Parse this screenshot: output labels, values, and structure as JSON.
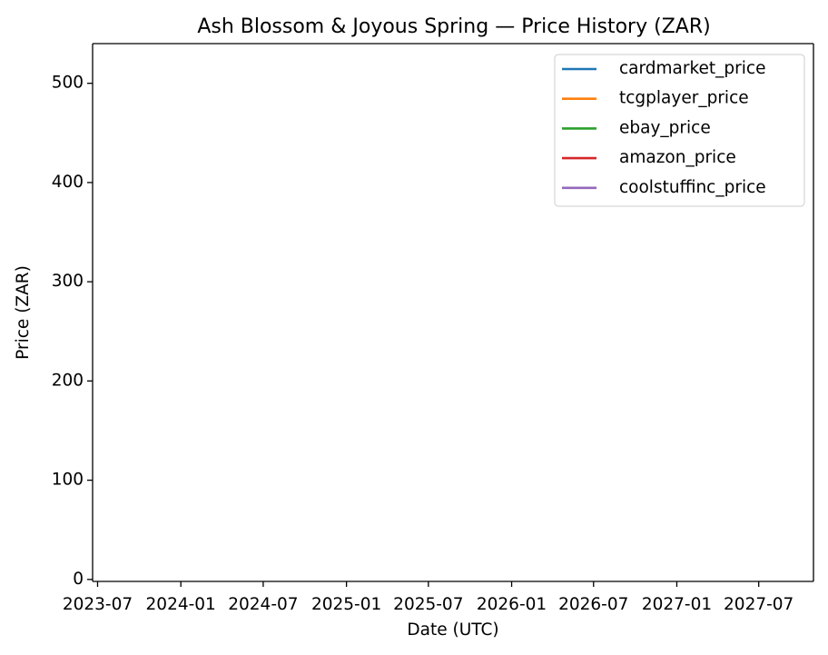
{
  "chart_data": {
    "type": "line",
    "title": "Ash Blossom & Joyous Spring — Price History (ZAR)",
    "xlabel": "Date (UTC)",
    "ylabel": "Price (ZAR)",
    "x_ticks": [
      "2023-07",
      "2024-01",
      "2024-07",
      "2025-01",
      "2025-07",
      "2026-01",
      "2026-07",
      "2027-01",
      "2027-07"
    ],
    "xlim": [
      "2023-06-20",
      "2027-10-30"
    ],
    "y_ticks": [
      0,
      100,
      200,
      300,
      400,
      500
    ],
    "ylim": [
      -2,
      540
    ],
    "grid": false,
    "legend_position": "top-right",
    "series": [
      {
        "name": "cardmarket_price",
        "color": "#1f77b4",
        "points": []
      },
      {
        "name": "tcgplayer_price",
        "color": "#ff7f0e",
        "points": []
      },
      {
        "name": "ebay_price",
        "color": "#2ca02c",
        "points": []
      },
      {
        "name": "amazon_price",
        "color": "#d62728",
        "points": []
      },
      {
        "name": "coolstuffinc_price",
        "color": "#9467bd",
        "points": []
      }
    ]
  }
}
